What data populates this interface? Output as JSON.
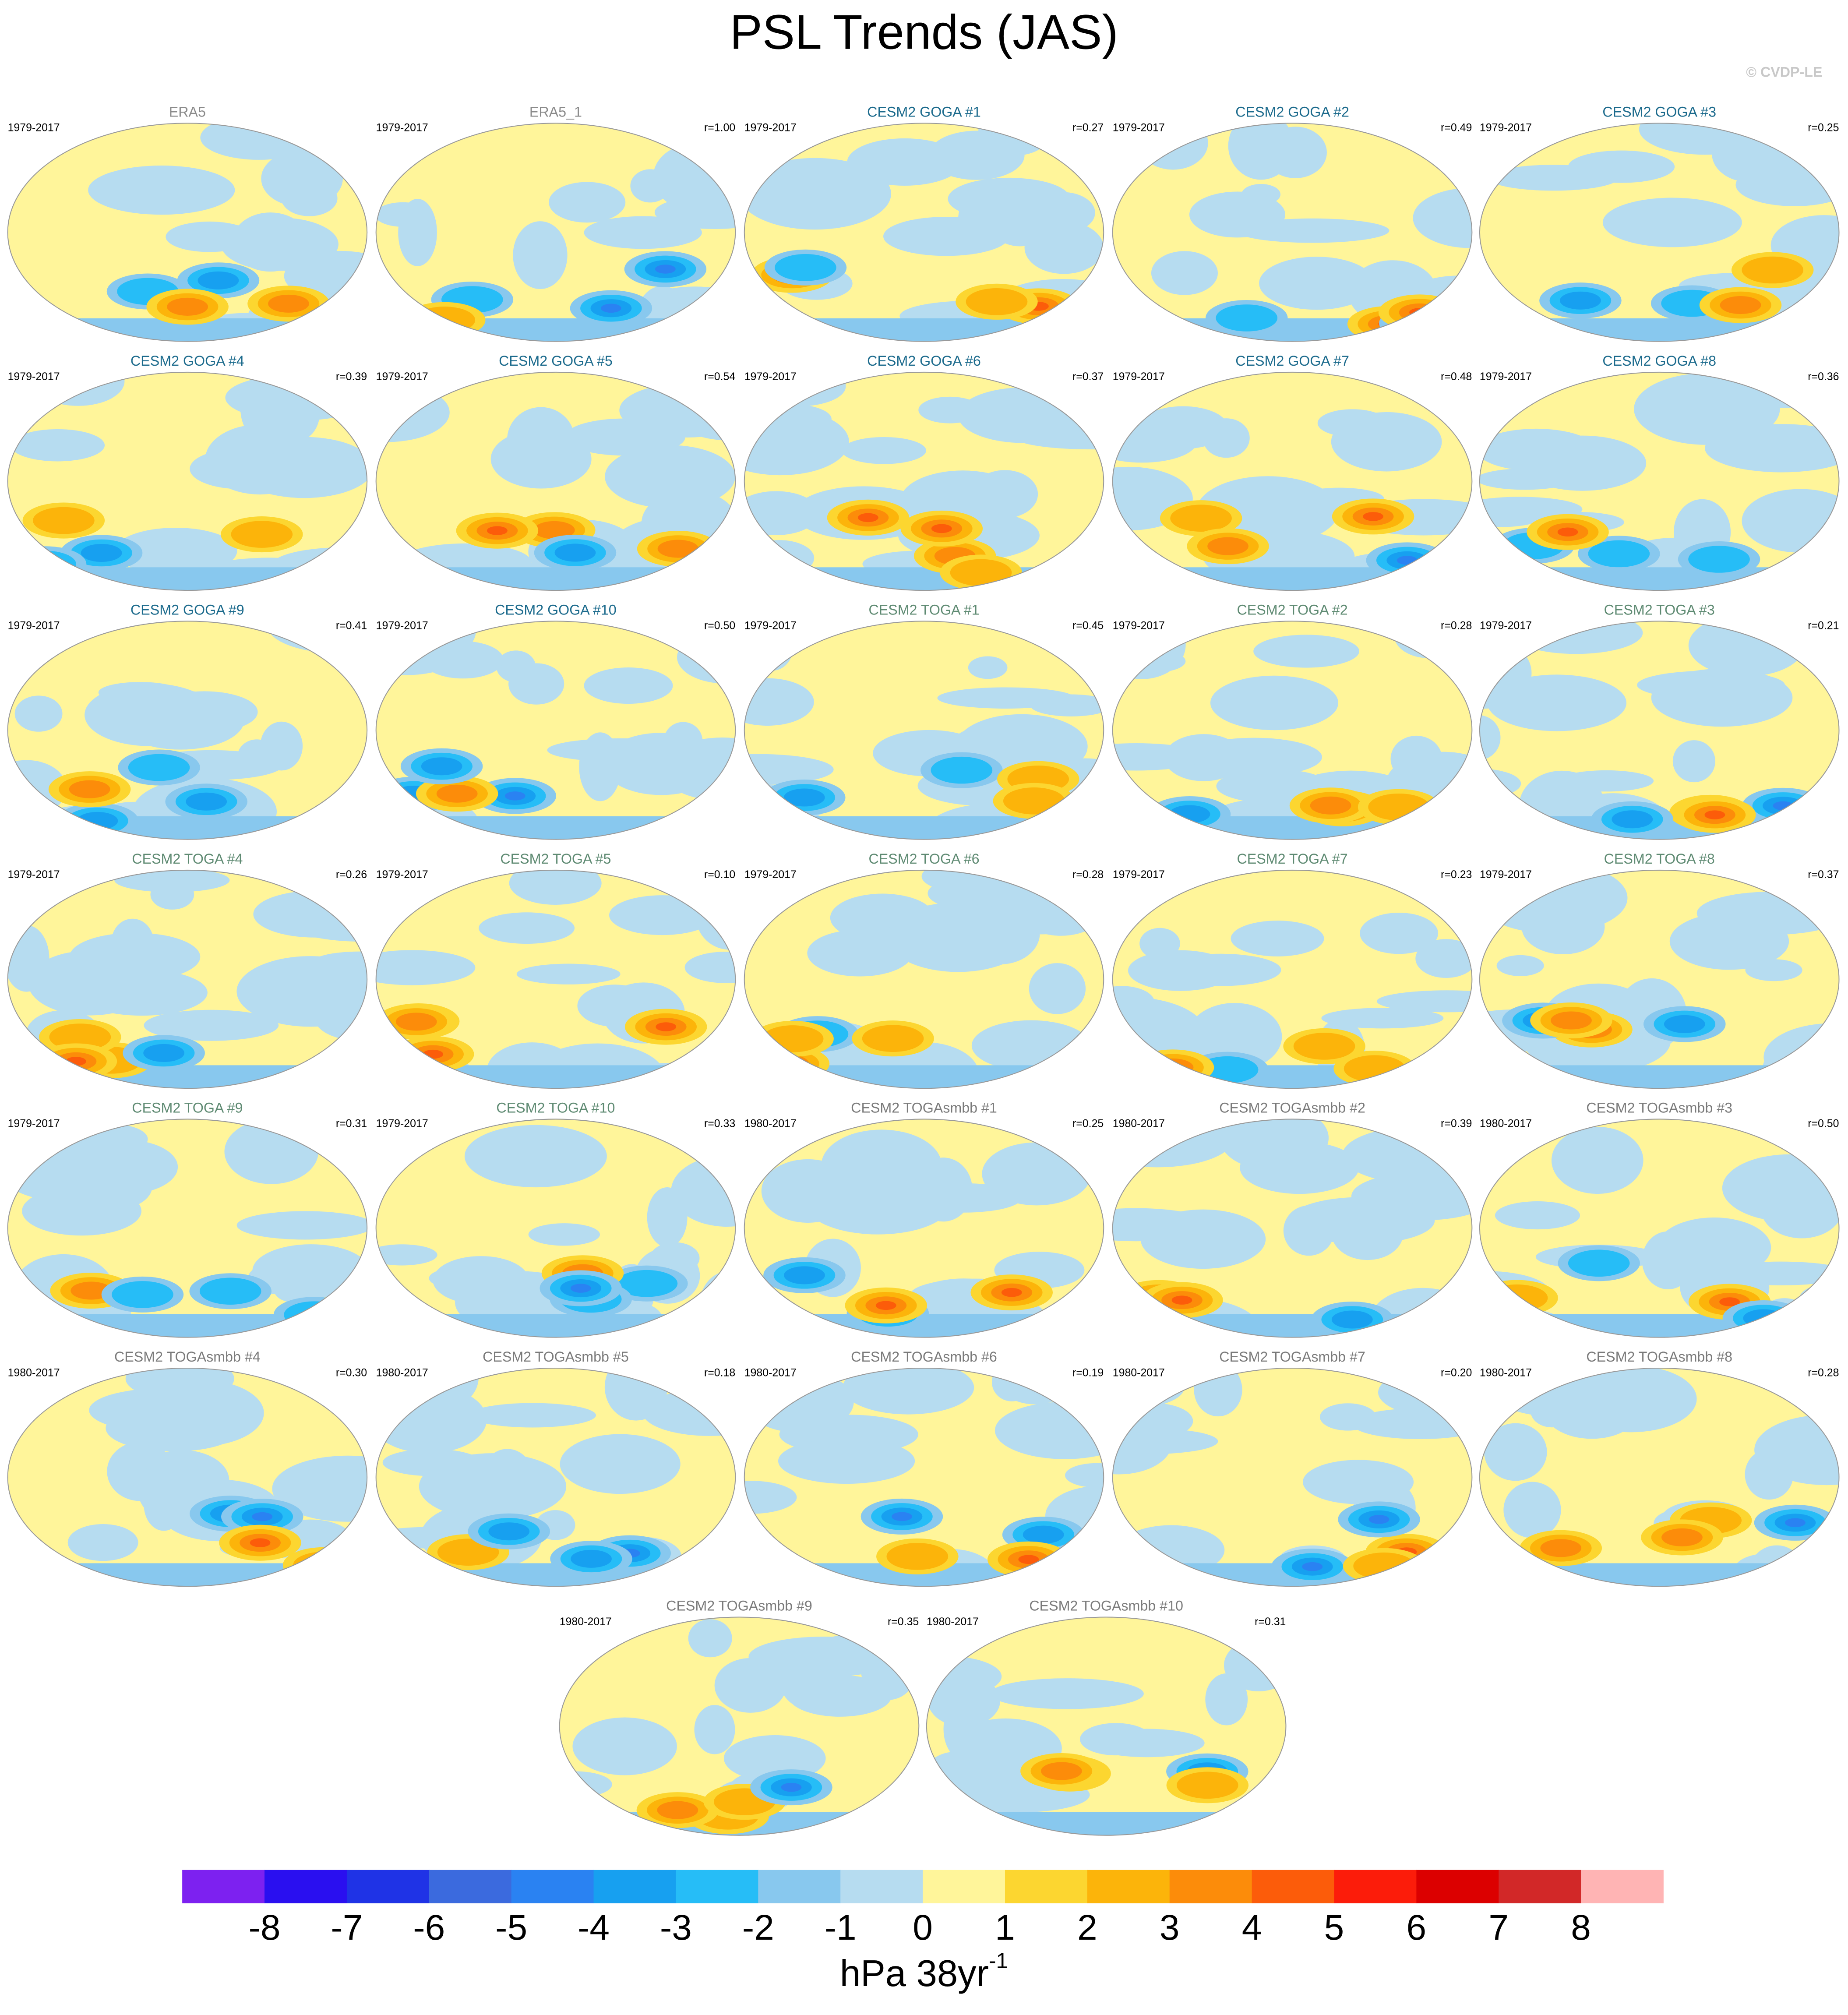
{
  "chart_data": {
    "type": "map",
    "title": "PSL Trends (JAS)",
    "copyright": "© CVDP-LE",
    "panels": [
      {
        "title": "ERA5",
        "period": "1979-2017",
        "title_color": "#8a8a8a"
      },
      {
        "title": "ERA5_1",
        "period": "1979-2017",
        "r": "r=1.00",
        "title_color": "#8a8a8a"
      },
      {
        "title": "CESM2 GOGA #1",
        "period": "1979-2017",
        "r": "r=0.27",
        "title_color": "#1b6a8c"
      },
      {
        "title": "CESM2 GOGA #2",
        "period": "1979-2017",
        "r": "r=0.49",
        "title_color": "#1b6a8c"
      },
      {
        "title": "CESM2 GOGA #3",
        "period": "1979-2017",
        "r": "r=0.25",
        "title_color": "#1b6a8c"
      },
      {
        "title": "CESM2 GOGA #4",
        "period": "1979-2017",
        "r": "r=0.39",
        "title_color": "#1b6a8c"
      },
      {
        "title": "CESM2 GOGA #5",
        "period": "1979-2017",
        "r": "r=0.54",
        "title_color": "#1b6a8c"
      },
      {
        "title": "CESM2 GOGA #6",
        "period": "1979-2017",
        "r": "r=0.37",
        "title_color": "#1b6a8c"
      },
      {
        "title": "CESM2 GOGA #7",
        "period": "1979-2017",
        "r": "r=0.48",
        "title_color": "#1b6a8c"
      },
      {
        "title": "CESM2 GOGA #8",
        "period": "1979-2017",
        "r": "r=0.36",
        "title_color": "#1b6a8c"
      },
      {
        "title": "CESM2 GOGA #9",
        "period": "1979-2017",
        "r": "r=0.41",
        "title_color": "#1b6a8c"
      },
      {
        "title": "CESM2 GOGA #10",
        "period": "1979-2017",
        "r": "r=0.50",
        "title_color": "#1b6a8c"
      },
      {
        "title": "CESM2 TOGA #1",
        "period": "1979-2017",
        "r": "r=0.45",
        "title_color": "#5e8a72"
      },
      {
        "title": "CESM2 TOGA #2",
        "period": "1979-2017",
        "r": "r=0.28",
        "title_color": "#5e8a72"
      },
      {
        "title": "CESM2 TOGA #3",
        "period": "1979-2017",
        "r": "r=0.21",
        "title_color": "#5e8a72"
      },
      {
        "title": "CESM2 TOGA #4",
        "period": "1979-2017",
        "r": "r=0.26",
        "title_color": "#5e8a72"
      },
      {
        "title": "CESM2 TOGA #5",
        "period": "1979-2017",
        "r": "r=0.10",
        "title_color": "#5e8a72"
      },
      {
        "title": "CESM2 TOGA #6",
        "period": "1979-2017",
        "r": "r=0.28",
        "title_color": "#5e8a72"
      },
      {
        "title": "CESM2 TOGA #7",
        "period": "1979-2017",
        "r": "r=0.23",
        "title_color": "#5e8a72"
      },
      {
        "title": "CESM2 TOGA #8",
        "period": "1979-2017",
        "r": "r=0.37",
        "title_color": "#5e8a72"
      },
      {
        "title": "CESM2 TOGA #9",
        "period": "1979-2017",
        "r": "r=0.31",
        "title_color": "#5e8a72"
      },
      {
        "title": "CESM2 TOGA #10",
        "period": "1979-2017",
        "r": "r=0.33",
        "title_color": "#5e8a72"
      },
      {
        "title": "CESM2 TOGAsmbb #1",
        "period": "1980-2017",
        "r": "r=0.25",
        "title_color": "#7a7a7a"
      },
      {
        "title": "CESM2 TOGAsmbb #2",
        "period": "1980-2017",
        "r": "r=0.39",
        "title_color": "#7a7a7a"
      },
      {
        "title": "CESM2 TOGAsmbb #3",
        "period": "1980-2017",
        "r": "r=0.50",
        "title_color": "#7a7a7a"
      },
      {
        "title": "CESM2 TOGAsmbb #4",
        "period": "1980-2017",
        "r": "r=0.30",
        "title_color": "#7a7a7a"
      },
      {
        "title": "CESM2 TOGAsmbb #5",
        "period": "1980-2017",
        "r": "r=0.18",
        "title_color": "#7a7a7a"
      },
      {
        "title": "CESM2 TOGAsmbb #6",
        "period": "1980-2017",
        "r": "r=0.19",
        "title_color": "#7a7a7a"
      },
      {
        "title": "CESM2 TOGAsmbb #7",
        "period": "1980-2017",
        "r": "r=0.20",
        "title_color": "#7a7a7a"
      },
      {
        "title": "CESM2 TOGAsmbb #8",
        "period": "1980-2017",
        "r": "r=0.28",
        "title_color": "#7a7a7a"
      },
      {
        "title": "CESM2 TOGAsmbb #9",
        "period": "1980-2017",
        "r": "r=0.35",
        "title_color": "#7a7a7a"
      },
      {
        "title": "CESM2 TOGAsmbb #10",
        "period": "1980-2017",
        "r": "r=0.31",
        "title_color": "#7a7a7a"
      }
    ],
    "colorbar": {
      "levels": [
        -8,
        -7,
        -6,
        -5,
        -4,
        -3,
        -2,
        -1,
        0,
        1,
        2,
        3,
        4,
        5,
        6,
        7,
        8
      ],
      "colors": [
        "#7d21f0",
        "#2a0ff0",
        "#1f33e6",
        "#3b6ade",
        "#2a82f2",
        "#17a0f0",
        "#26bdf7",
        "#88c8ee",
        "#b6dcf0",
        "#fff59a",
        "#fcd630",
        "#fcb40a",
        "#fc8c0a",
        "#fc5c0a",
        "#fc1c0a",
        "#dc0000",
        "#d22828",
        "#ffb4b4"
      ],
      "label": "hPa 38yr",
      "label_sup": "-1"
    }
  }
}
